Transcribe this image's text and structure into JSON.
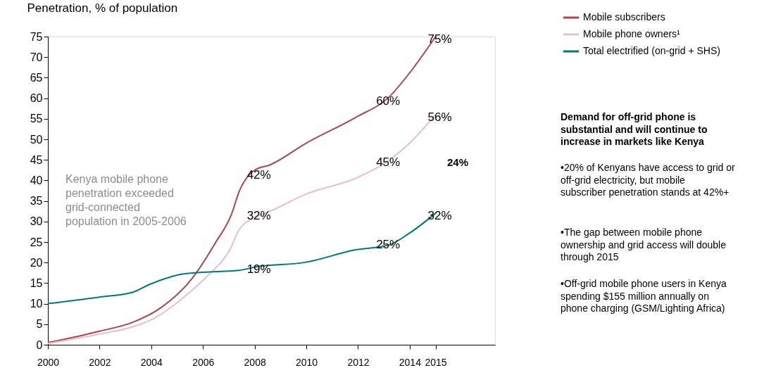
{
  "chart_data": {
    "type": "line",
    "ylabel": "Penetration, % of population",
    "xlim": [
      2000,
      2017.3
    ],
    "xticks": [
      2000,
      2002,
      2004,
      2006,
      2008,
      2010,
      2012,
      2014,
      2015
    ],
    "ylim": [
      0,
      75
    ],
    "yticks": [
      0,
      5,
      10,
      15,
      20,
      25,
      30,
      35,
      40,
      45,
      50,
      55,
      60,
      65,
      70,
      75
    ],
    "grid": false,
    "legend": "top right",
    "line_style": "solid",
    "marker": "none",
    "series": [
      {
        "name": "Mobile subscribers",
        "color": "#a8464f",
        "x": [
          2000,
          2002,
          2003.3,
          2004.3,
          2005.6,
          2006.5,
          2007.1,
          2007.4,
          2008,
          2008.6,
          2010,
          2011.9,
          2013.2,
          2014,
          2015
        ],
        "values": [
          0.5,
          3.3,
          5.5,
          8.7,
          16.3,
          25,
          31.7,
          37.3,
          42.5,
          43.8,
          49.1,
          55.3,
          60.3,
          66.2,
          75
        ]
      },
      {
        "name": "Mobile phone owners¹",
        "color": "#e6c0c6",
        "x": [
          2000,
          2002,
          2003.3,
          2004.1,
          2005.6,
          2006.2,
          2007.05,
          2007.4,
          2008,
          2008.6,
          2010,
          2011.9,
          2013.2,
          2014,
          2015
        ],
        "values": [
          0.3,
          2.6,
          4.4,
          6.4,
          13.4,
          16.9,
          23.3,
          28,
          30.9,
          32.5,
          36.7,
          40.5,
          44.9,
          49.1,
          56
        ]
      },
      {
        "name": "Total electrified (on-grid + SHS)",
        "color": "#007a6e",
        "x": [
          2000,
          2002,
          2003.3,
          2003.9,
          2004.8,
          2005.2,
          2006.5,
          2007.4,
          2008,
          2010,
          2011.9,
          2013.2,
          2014,
          2015
        ],
        "values": [
          10,
          11.6,
          12.8,
          14.6,
          16.6,
          17.2,
          17.8,
          18.1,
          18.9,
          20.1,
          23.1,
          24.3,
          27.2,
          32
        ]
      }
    ],
    "annotations": [
      {
        "text": "42%",
        "x": 2008,
        "y": 42
      },
      {
        "text": "32%",
        "x": 2008,
        "y": 32
      },
      {
        "text": "19%",
        "x": 2008,
        "y": 19
      },
      {
        "text": "60%",
        "x": 2013,
        "y": 60
      },
      {
        "text": "45%",
        "x": 2013,
        "y": 45
      },
      {
        "text": "25%",
        "x": 2013,
        "y": 25
      },
      {
        "text": "75%",
        "x": 2015,
        "y": 75
      },
      {
        "text": "56%",
        "x": 2015,
        "y": 56
      },
      {
        "text": "32%",
        "x": 2015,
        "y": 32
      },
      "24%",
      "Kenya mobile phone penetration exceeded grid-connected population in 2005-2006",
      "Demand for off-grid phone is substantial and will continue to increase in markets like Kenya",
      "•20% of Kenyans have access to grid or off-grid electricity, but mobile subscriber penetration stands at 42%+",
      "•The gap between mobile phone ownership and grid access will double through 2015",
      "•Off-grid mobile phone users in Kenya spending $155 million annually on phone charging (GSM/Lighting Africa)"
    ]
  }
}
